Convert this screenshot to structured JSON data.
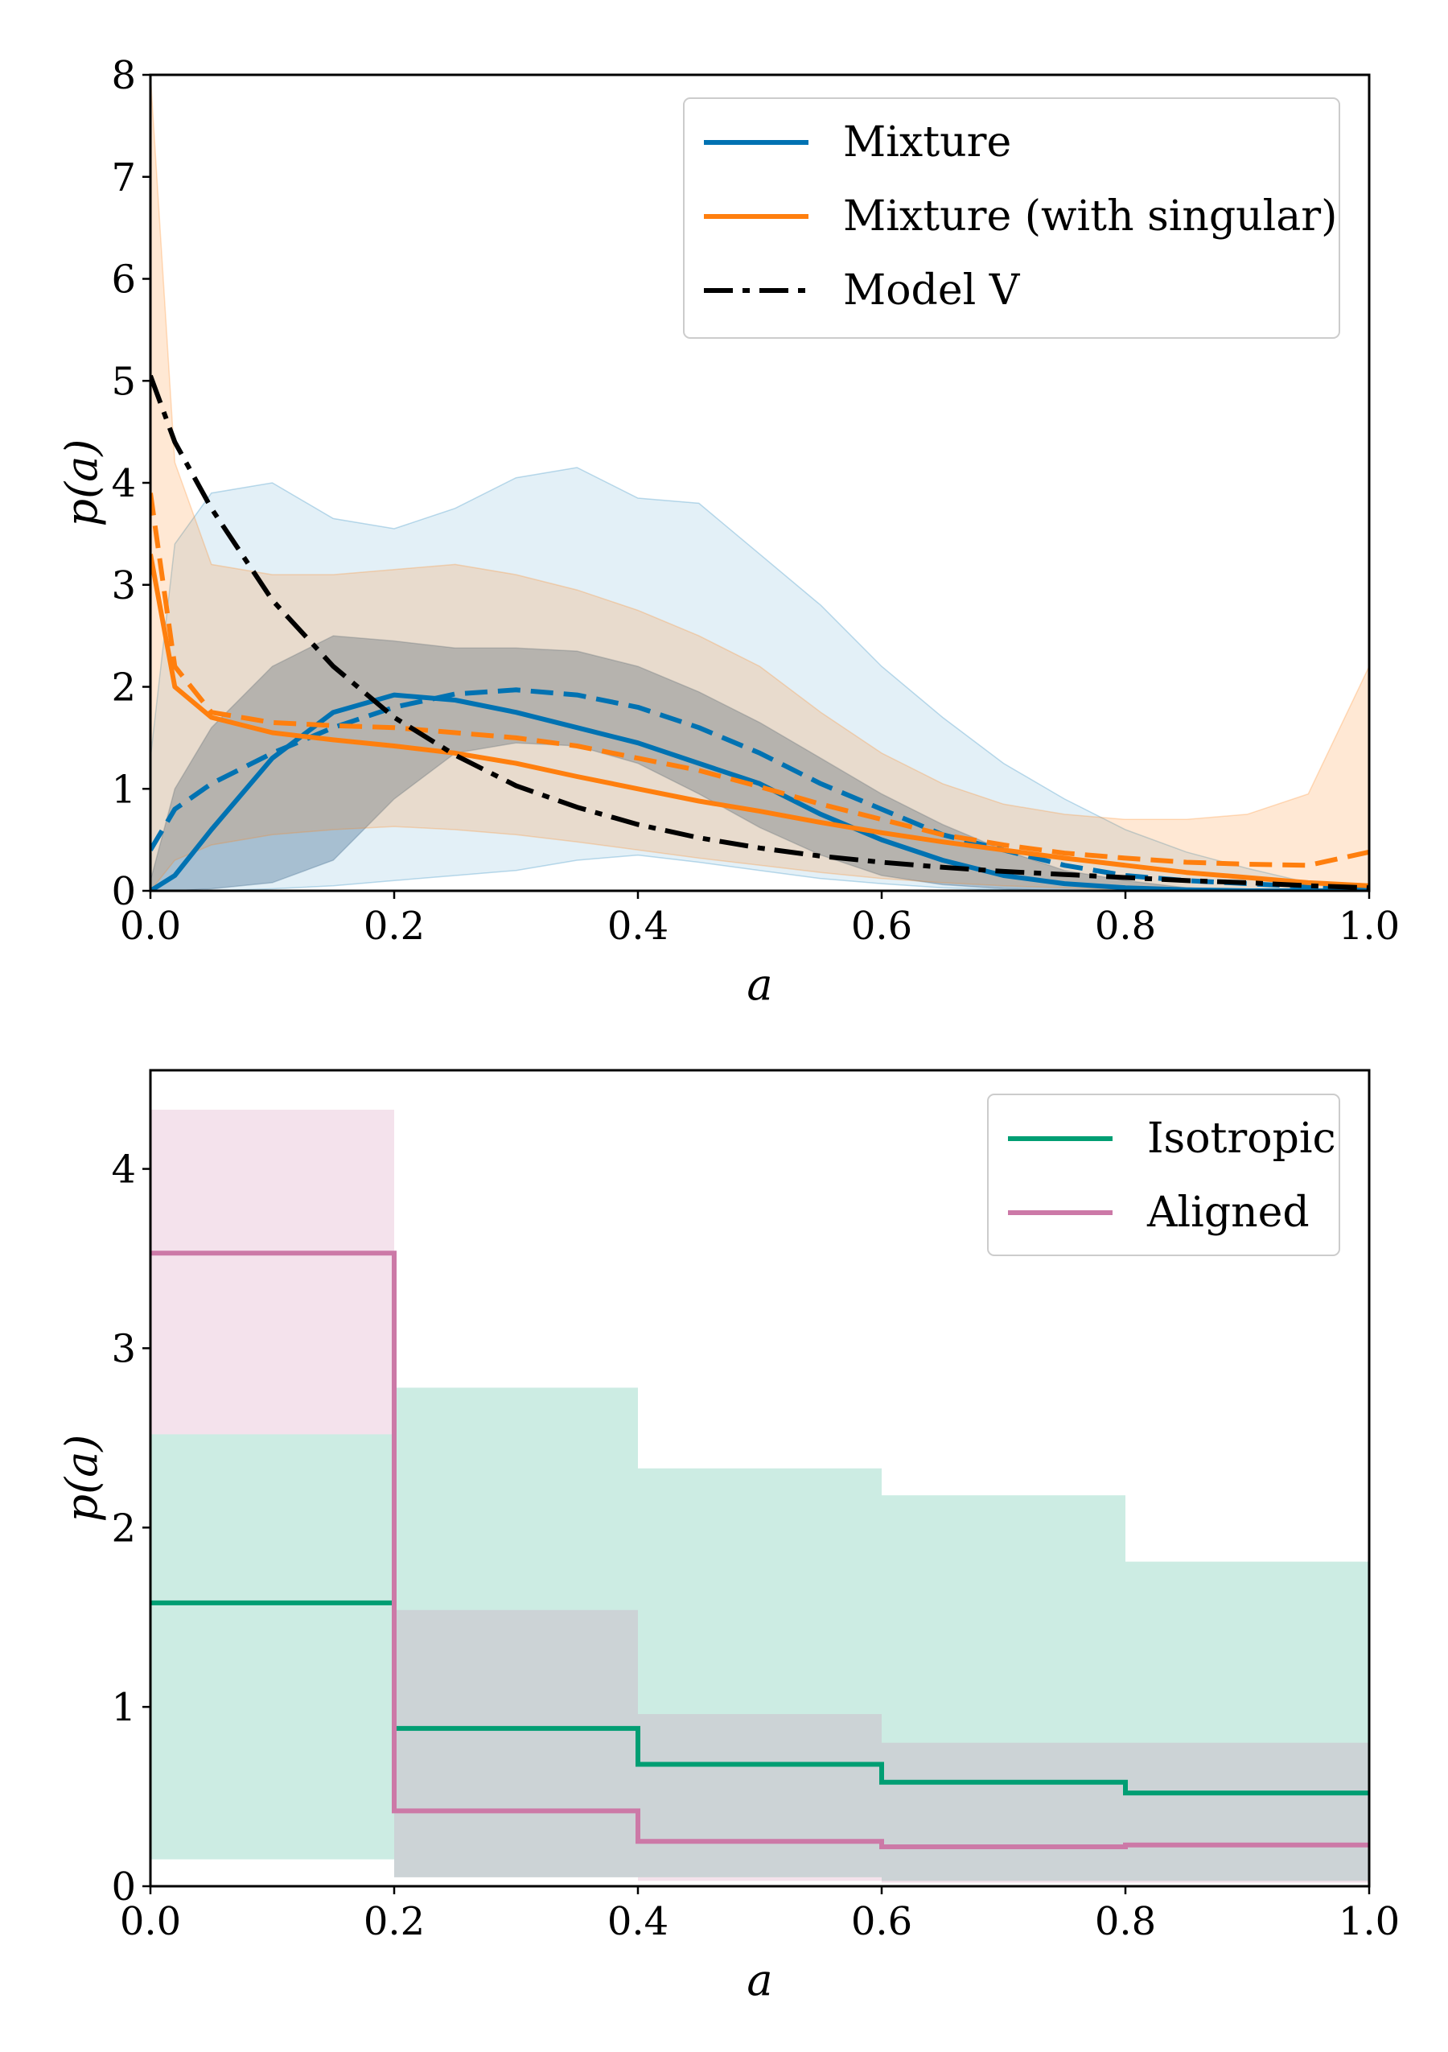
{
  "chart_data": [
    {
      "type": "line",
      "xlabel": "a",
      "ylabel": "p(a)",
      "xlim": [
        0.0,
        1.0
      ],
      "ylim": [
        0,
        8
      ],
      "xticks": [
        "0.0",
        "0.2",
        "0.4",
        "0.6",
        "0.8",
        "1.0"
      ],
      "yticks": [
        "0",
        "1",
        "2",
        "3",
        "4",
        "5",
        "6",
        "7",
        "8"
      ],
      "legend_position": "top-right",
      "legend": [
        {
          "label": "Mixture",
          "color": "#0072b2",
          "style": "solid"
        },
        {
          "label": "Mixture (with singular)",
          "color": "#ff7f0e",
          "style": "solid"
        },
        {
          "label": "Model V",
          "color": "#000000",
          "style": "dashdot"
        }
      ],
      "x": [
        0.0,
        0.02,
        0.05,
        0.1,
        0.15,
        0.2,
        0.25,
        0.3,
        0.35,
        0.4,
        0.45,
        0.5,
        0.55,
        0.6,
        0.65,
        0.7,
        0.75,
        0.8,
        0.85,
        0.9,
        0.95,
        1.0
      ],
      "series": [
        {
          "name": "Mixture",
          "role": "median",
          "color": "#0072b2",
          "style": "solid",
          "values": [
            0.0,
            0.15,
            0.6,
            1.3,
            1.75,
            1.92,
            1.87,
            1.75,
            1.6,
            1.45,
            1.25,
            1.05,
            0.75,
            0.5,
            0.3,
            0.15,
            0.07,
            0.03,
            0.01,
            0.0,
            0.0,
            0.0
          ]
        },
        {
          "name": "Mixture",
          "role": "dashed",
          "color": "#0072b2",
          "style": "dashed",
          "values": [
            0.4,
            0.8,
            1.05,
            1.35,
            1.6,
            1.8,
            1.93,
            1.97,
            1.92,
            1.8,
            1.6,
            1.35,
            1.05,
            0.8,
            0.55,
            0.4,
            0.25,
            0.15,
            0.1,
            0.07,
            0.04,
            0.02
          ]
        },
        {
          "name": "Mixture (with singular)",
          "role": "median",
          "color": "#ff7f0e",
          "style": "solid",
          "values": [
            3.3,
            2.0,
            1.7,
            1.55,
            1.48,
            1.42,
            1.35,
            1.25,
            1.12,
            1.0,
            0.88,
            0.78,
            0.67,
            0.57,
            0.48,
            0.4,
            0.32,
            0.25,
            0.18,
            0.13,
            0.08,
            0.05
          ]
        },
        {
          "name": "Mixture (with singular)",
          "role": "dashed",
          "color": "#ff7f0e",
          "style": "dashed",
          "values": [
            3.9,
            2.2,
            1.75,
            1.65,
            1.62,
            1.6,
            1.55,
            1.5,
            1.42,
            1.3,
            1.18,
            1.02,
            0.85,
            0.7,
            0.55,
            0.45,
            0.37,
            0.32,
            0.28,
            0.26,
            0.25,
            0.38
          ]
        },
        {
          "name": "Model V",
          "role": "median",
          "color": "#000000",
          "style": "dashdot",
          "values": [
            5.05,
            4.4,
            3.75,
            2.85,
            2.2,
            1.7,
            1.33,
            1.03,
            0.82,
            0.65,
            0.52,
            0.42,
            0.34,
            0.28,
            0.23,
            0.19,
            0.16,
            0.13,
            0.1,
            0.08,
            0.05,
            0.03
          ]
        }
      ],
      "bands": [
        {
          "name": "Mixture outer",
          "color": "#0072b2",
          "opacity": 0.11,
          "upper": [
            1.3,
            3.4,
            3.9,
            4.0,
            3.65,
            3.55,
            3.75,
            4.05,
            4.15,
            3.85,
            3.8,
            3.3,
            2.8,
            2.2,
            1.7,
            1.25,
            0.9,
            0.6,
            0.38,
            0.22,
            0.08,
            0.0
          ],
          "lower": [
            0.0,
            0.0,
            0.0,
            0.02,
            0.05,
            0.1,
            0.15,
            0.2,
            0.3,
            0.35,
            0.28,
            0.2,
            0.12,
            0.07,
            0.03,
            0.01,
            0.0,
            0.0,
            0.0,
            0.0,
            0.0,
            0.0
          ]
        },
        {
          "name": "Mixture inner",
          "color": "#1f4e79",
          "opacity": 0.3,
          "upper": [
            0.1,
            1.0,
            1.6,
            2.2,
            2.5,
            2.45,
            2.38,
            2.38,
            2.35,
            2.2,
            1.95,
            1.65,
            1.3,
            0.95,
            0.65,
            0.4,
            0.2,
            0.1,
            0.03,
            0.0,
            0.0,
            0.0
          ],
          "lower": [
            0.0,
            0.0,
            0.02,
            0.08,
            0.3,
            0.9,
            1.35,
            1.45,
            1.42,
            1.25,
            0.95,
            0.62,
            0.35,
            0.15,
            0.06,
            0.02,
            0.0,
            0.0,
            0.0,
            0.0,
            0.0,
            0.0
          ]
        },
        {
          "name": "Mixture (with singular) outer",
          "color": "#ff7f0e",
          "opacity": 0.18,
          "upper": [
            8.0,
            4.2,
            3.2,
            3.1,
            3.1,
            3.15,
            3.2,
            3.1,
            2.95,
            2.75,
            2.5,
            2.2,
            1.75,
            1.35,
            1.05,
            0.85,
            0.75,
            0.7,
            0.7,
            0.75,
            0.95,
            2.2
          ],
          "lower": [
            0.0,
            0.3,
            0.45,
            0.55,
            0.6,
            0.63,
            0.6,
            0.55,
            0.48,
            0.4,
            0.32,
            0.25,
            0.18,
            0.12,
            0.08,
            0.05,
            0.03,
            0.01,
            0.0,
            0.0,
            0.0,
            0.0
          ]
        }
      ]
    },
    {
      "type": "line",
      "xlabel": "a",
      "ylabel": "p(a)",
      "xlim": [
        0.0,
        1.0
      ],
      "ylim": [
        0,
        4.55
      ],
      "xticks": [
        "0.0",
        "0.2",
        "0.4",
        "0.6",
        "0.8",
        "1.0"
      ],
      "yticks": [
        "0",
        "1",
        "2",
        "3",
        "4"
      ],
      "legend_position": "top-right",
      "legend": [
        {
          "label": "Isotropic",
          "color": "#009e73",
          "style": "solid"
        },
        {
          "label": "Aligned",
          "color": "#cc79a7",
          "style": "solid"
        }
      ],
      "bin_edges": [
        0.0,
        0.2,
        0.4,
        0.6,
        0.8,
        1.0
      ],
      "series": [
        {
          "name": "Isotropic",
          "color": "#009e73",
          "values": [
            1.58,
            0.88,
            0.68,
            0.58,
            0.52
          ],
          "upper": [
            2.52,
            2.78,
            2.33,
            2.18,
            1.81
          ],
          "lower": [
            0.15,
            0.05,
            0.05,
            0.03,
            0.03
          ]
        },
        {
          "name": "Aligned",
          "color": "#cc79a7",
          "values": [
            3.53,
            0.42,
            0.25,
            0.22,
            0.23
          ],
          "upper": [
            4.33,
            1.54,
            0.96,
            0.8,
            0.8
          ],
          "lower": [
            2.52,
            0.05,
            0.03,
            0.02,
            0.02
          ]
        }
      ]
    }
  ]
}
